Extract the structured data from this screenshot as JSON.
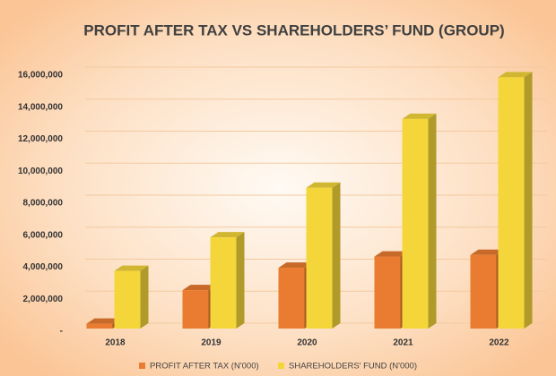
{
  "chart_data": {
    "type": "bar3d",
    "title": "PROFIT AFTER TAX VS SHAREHOLDERS’ FUND (GROUP)",
    "categories": [
      "2018",
      "2019",
      "2020",
      "2021",
      "2022"
    ],
    "series": [
      {
        "name": "PROFIT AFTER TAX (N'000)",
        "color": "#e97c30",
        "values": [
          300000,
          2400000,
          3800000,
          4500000,
          4600000
        ]
      },
      {
        "name": "SHAREHOLDERS' FUND (N'000)",
        "color": "#f5d63a",
        "values": [
          3600000,
          5700000,
          8800000,
          13100000,
          15700000
        ]
      }
    ],
    "ylim": [
      0,
      16000000
    ],
    "yticks": [
      {
        "value": 0,
        "label": "-"
      },
      {
        "value": 2000000,
        "label": "2,000,000"
      },
      {
        "value": 4000000,
        "label": "4,000,000"
      },
      {
        "value": 6000000,
        "label": "6,000,000"
      },
      {
        "value": 8000000,
        "label": "8,000,000"
      },
      {
        "value": 10000000,
        "label": "10,000,000"
      },
      {
        "value": 12000000,
        "label": "12,000,000"
      },
      {
        "value": 14000000,
        "label": "14,000,000"
      },
      {
        "value": 16000000,
        "label": "16,000,000"
      }
    ],
    "grid": true
  }
}
